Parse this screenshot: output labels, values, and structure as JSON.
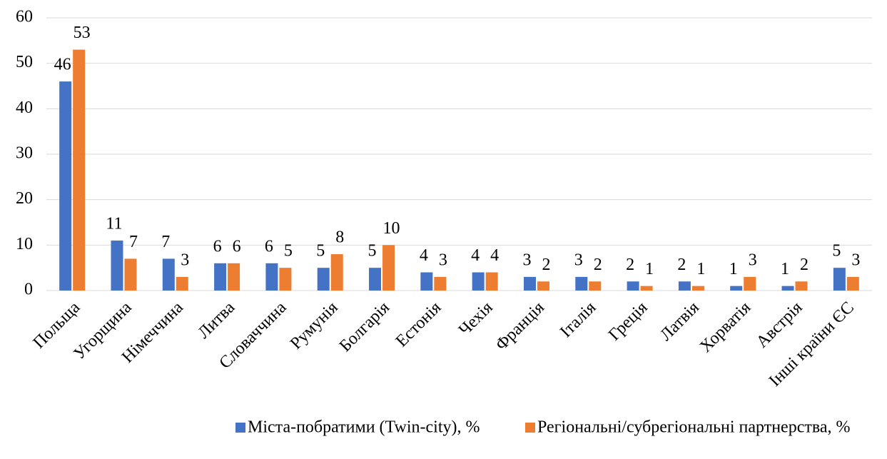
{
  "chart_data": {
    "type": "bar",
    "categories": [
      "Польща",
      "Угорщина",
      "Німеччина",
      "Литва",
      "Словаччина",
      "Румунія",
      "Болгарія",
      "Естонія",
      "Чехія",
      "Франція",
      "Італія",
      "Греція",
      "Латвія",
      "Хорватія",
      "Австрія",
      "Інші країни ЄС"
    ],
    "series": [
      {
        "name": "Міста-побратими (Twin-city), %",
        "color": "#4472c4",
        "values": [
          46,
          11,
          7,
          6,
          6,
          5,
          5,
          4,
          4,
          3,
          3,
          2,
          2,
          1,
          1,
          5
        ]
      },
      {
        "name": "Регіональні/субрегіональні партнерства, %",
        "color": "#ed7d31",
        "values": [
          53,
          7,
          3,
          6,
          5,
          8,
          10,
          3,
          4,
          2,
          2,
          1,
          1,
          3,
          2,
          3
        ]
      }
    ],
    "ylim": [
      0,
      60
    ],
    "yticks": [
      0,
      10,
      20,
      30,
      40,
      50,
      60
    ],
    "grid": true,
    "legend": "bottom"
  }
}
